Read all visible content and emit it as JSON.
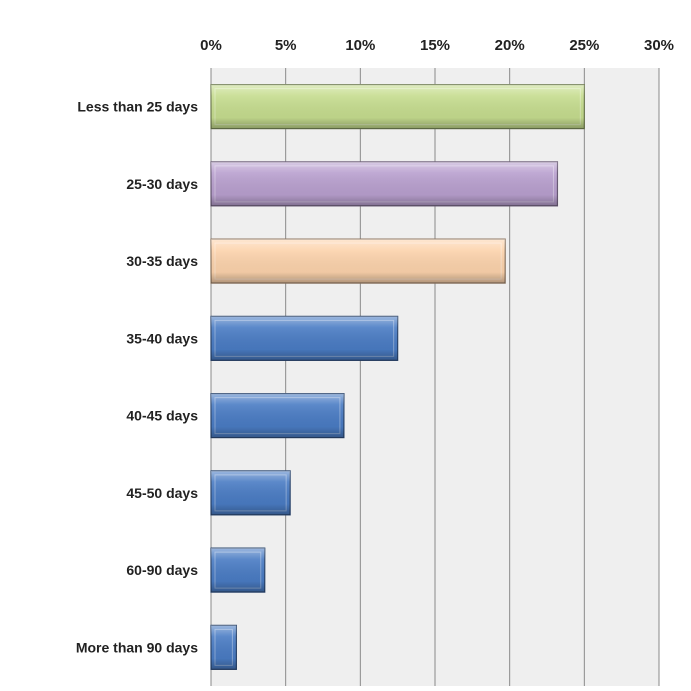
{
  "chart_data": {
    "type": "bar",
    "orientation": "horizontal",
    "title": "",
    "xlabel": "",
    "ylabel": "",
    "xlim": [
      0,
      30
    ],
    "ticks": [
      0,
      5,
      10,
      15,
      20,
      25,
      30
    ],
    "tick_suffix": "%",
    "grid": "vertical",
    "legend": "none",
    "categories": [
      "Less than 25 days",
      "25-30 days",
      "30-35 days",
      "35-40 days",
      "40-45 days",
      "45-50 days",
      "60-90 days",
      "More than 90 days"
    ],
    "values": [
      25,
      23.2,
      19.7,
      12.5,
      8.9,
      5.3,
      3.6,
      1.7
    ],
    "colors": [
      "#c6dd8f",
      "#b9a0cf",
      "#fcd3ac",
      "#4a7cc4",
      "#4a7cc4",
      "#4a7cc4",
      "#4a7cc4",
      "#4a7cc4"
    ],
    "plot_background": "#efefef",
    "grid_color": "#8a8a8a"
  },
  "tick_labels": [
    "0%",
    "5%",
    "10%",
    "15%",
    "20%",
    "25%",
    "30%"
  ]
}
